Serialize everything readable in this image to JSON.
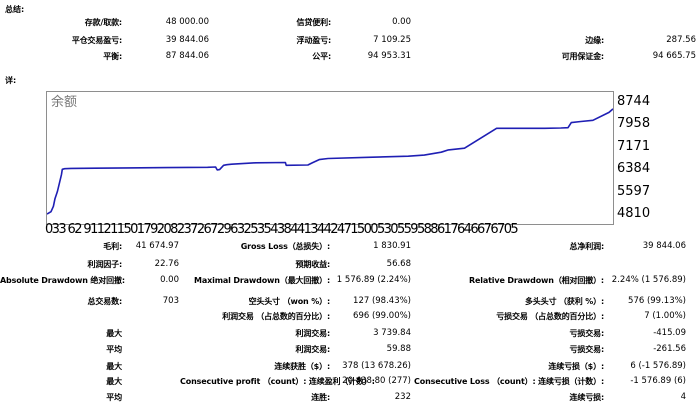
{
  "summary": {
    "title": "总结:",
    "rows": [
      {
        "l1": "存款/取款:",
        "v1": "48 000.00",
        "l2": "信贷便利:",
        "v2": "0.00",
        "l3": "",
        "v3": ""
      },
      {
        "l1": "平仓交易盈亏:",
        "v1": "39 844.06",
        "l2": "浮动盈亏:",
        "v2": "7 109.25",
        "l3": "边缘:",
        "v3": "287.56"
      },
      {
        "l1": "平衡:",
        "v1": "87 844.06",
        "l2": "公平:",
        "v2": "94 953.31",
        "l3": "可用保证金:",
        "v3": "94 665.75"
      }
    ]
  },
  "details_title": "详:",
  "chart_data": {
    "type": "line",
    "title": "余额",
    "xlabel": "",
    "ylabel": "",
    "series_color": "#1f1fb4",
    "y_ticks": [
      "8744",
      "7958",
      "7171",
      "6384",
      "5597",
      "4810"
    ],
    "y_tick_values": [
      8744,
      7958,
      7171,
      6384,
      5597,
      4810
    ],
    "ylim": [
      4810,
      8744
    ],
    "x_tick_text": "033 62 91121150179208237267296325354384413442471500530559588617646676705",
    "xlim": [
      0,
      705
    ],
    "x": [
      0,
      5,
      8,
      10,
      13,
      18,
      19,
      22,
      30,
      60,
      100,
      150,
      200,
      210,
      212,
      215,
      220,
      224,
      230,
      260,
      297,
      298,
      325,
      330,
      339,
      350,
      400,
      450,
      470,
      491,
      493,
      500,
      520,
      560,
      600,
      620,
      640,
      649,
      653,
      665,
      680,
      700,
      705
    ],
    "y": [
      4810,
      4890,
      5080,
      5350,
      5600,
      6200,
      6380,
      6400,
      6410,
      6420,
      6430,
      6440,
      6450,
      6460,
      6360,
      6370,
      6520,
      6540,
      6560,
      6610,
      6620,
      6520,
      6530,
      6600,
      6720,
      6760,
      6800,
      6840,
      6880,
      6980,
      7000,
      7060,
      7120,
      7820,
      7820,
      7820,
      7830,
      7840,
      8020,
      8060,
      8100,
      8380,
      8500
    ]
  },
  "stats": {
    "rows": [
      {
        "l1": "毛利:",
        "v1": "41 674.97",
        "l2": "Gross Loss（总损失）:",
        "v2": "1 830.91",
        "l3": "总净利润:",
        "v3": "39 844.06"
      },
      {
        "l1": "利润因子:",
        "v1": "22.76",
        "l2": "预期收益:",
        "v2": "56.68",
        "l3": "",
        "v3": ""
      },
      {
        "l1": "Absolute Drawdown 绝对回撤:",
        "v1": "0.00",
        "l2": "Maximal Drawdown（最大回撤）:",
        "v2": "1 576.89 (2.24%)",
        "l3": "Relative Drawdown（相对回撤）:",
        "v3": "2.24% (1 576.89)"
      },
      {
        "l1": "总交易数:",
        "v1": "703",
        "l2": "空头头寸 （won %）:",
        "v2": "127 (98.43%)",
        "l3": "多头头寸 （获利 %）:",
        "v3": "576 (99.13%)"
      },
      {
        "l1": "",
        "v1": "",
        "l2": "利润交易 （占总数的百分比）:",
        "v2": "696 (99.00%)",
        "l3": "亏损交易 （占总数的百分比）:",
        "v3": "7 (1.00%)"
      },
      {
        "l1": "最大",
        "v1": "",
        "l2": "利润交易:",
        "v2": "3 739.84",
        "l3": "亏损交易:",
        "v3": "-415.09"
      },
      {
        "l1": "平均",
        "v1": "",
        "l2": "利润交易:",
        "v2": "59.88",
        "l3": "亏损交易:",
        "v3": "-261.56"
      },
      {
        "l1": "最大",
        "v1": "",
        "l2": "连续获胜（$）:",
        "v2": "378 (13 678.26)",
        "l3": "连续亏损（$）:",
        "v3": "6 (-1 576.89)"
      },
      {
        "l1": "最大",
        "v1": "",
        "l2": "Consecutive profit （count）: 连续盈利（计数）:",
        "v2": "20 438.80 (277)",
        "l3": "Consecutive Loss （count）: 连续亏损（计数）:",
        "v3": "-1 576.89 (6)"
      },
      {
        "l1": "平均",
        "v1": "",
        "l2": "连胜:",
        "v2": "232",
        "l3": "连续亏损:",
        "v3": "4"
      }
    ]
  }
}
